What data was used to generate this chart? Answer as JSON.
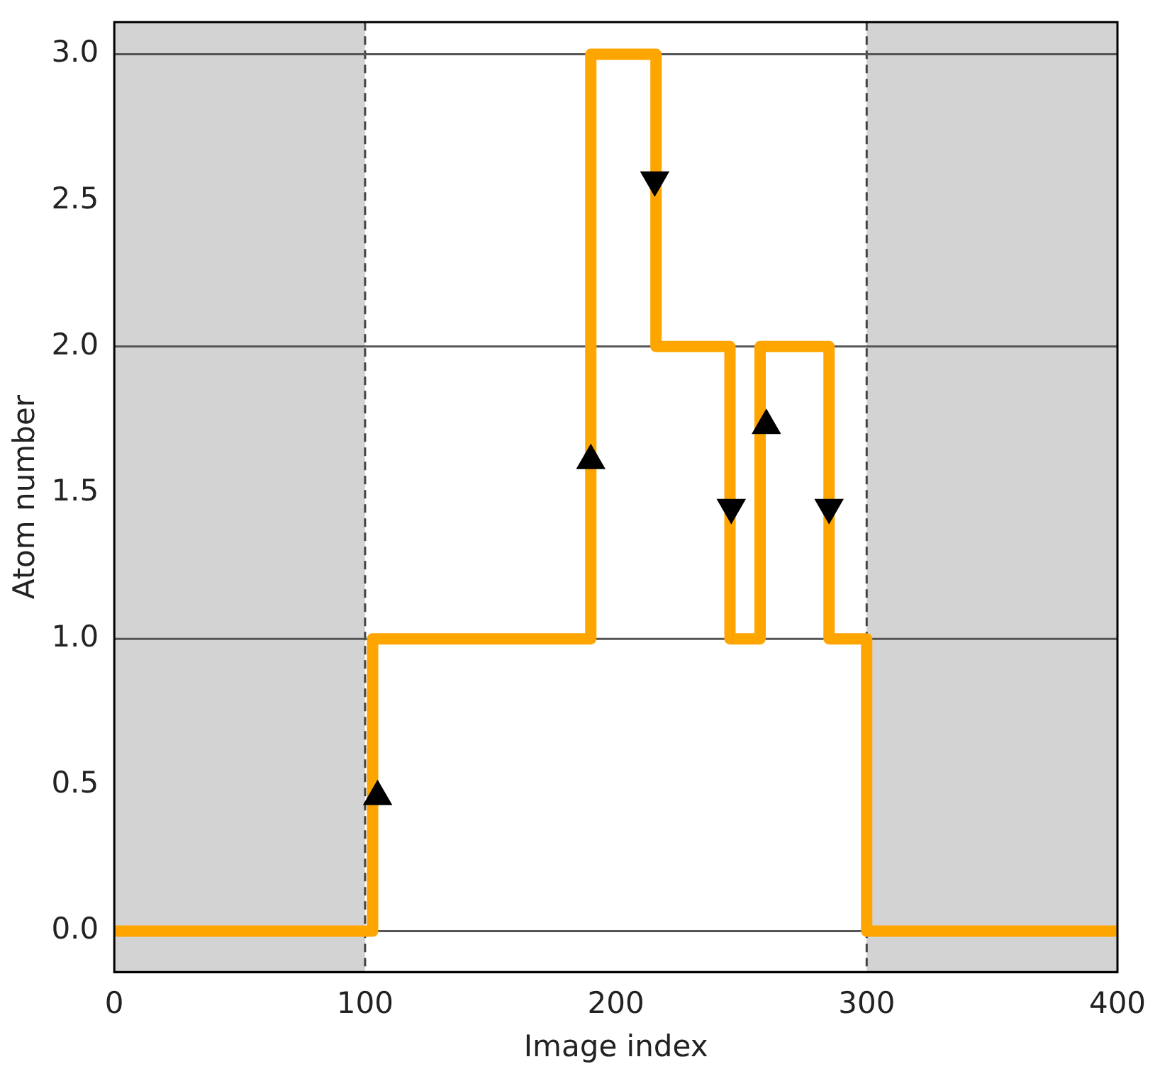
{
  "chart_data": {
    "type": "step",
    "xlabel": "Image index",
    "ylabel": "Atom number",
    "xlim": [
      0,
      400
    ],
    "xticks": [
      0,
      100,
      200,
      300,
      400
    ],
    "ylim": [
      -0.14,
      3.11
    ],
    "yticks": [
      {
        "value": 0,
        "label": "0.0"
      },
      {
        "value": 0.5,
        "label": "0.5"
      },
      {
        "value": 1,
        "label": "1.0"
      },
      {
        "value": 1.5,
        "label": "1.5"
      },
      {
        "value": 2,
        "label": "2.0"
      },
      {
        "value": 2.5,
        "label": "2.5"
      },
      {
        "value": 3,
        "label": "3.0"
      }
    ],
    "grid": false,
    "legend": false,
    "bands": [
      {
        "axis": "x",
        "from": 0,
        "to": 100,
        "color": "#d3d3d3"
      },
      {
        "axis": "x",
        "from": 300,
        "to": 400,
        "color": "#d3d3d3"
      }
    ],
    "ref_lines": [
      {
        "axis": "x",
        "value": 100,
        "color": "#444444",
        "line_style": "dashed"
      },
      {
        "axis": "x",
        "value": 300,
        "color": "#444444",
        "line_style": "dashed"
      },
      {
        "axis": "y",
        "value": 0,
        "color": "#555555",
        "line_style": "solid"
      },
      {
        "axis": "y",
        "value": 1,
        "color": "#555555",
        "line_style": "solid"
      },
      {
        "axis": "y",
        "value": 2,
        "color": "#555555",
        "line_style": "solid"
      },
      {
        "axis": "y",
        "value": 3,
        "color": "#555555",
        "line_style": "solid"
      }
    ],
    "series": [
      {
        "type": "step",
        "color": "#ffa500",
        "x": [
          0,
          103,
          190,
          216,
          245.5,
          257.5,
          285,
          300,
          400
        ],
        "values": [
          0,
          1,
          3,
          2,
          1,
          2,
          1,
          0,
          0
        ]
      },
      {
        "type": "scatter",
        "color": "#000000",
        "marker": "triangle",
        "x": [
          105,
          190,
          260
        ],
        "values": [
          0.46,
          1.61,
          1.73
        ]
      },
      {
        "type": "scatter",
        "color": "#000000",
        "marker": "triangle-down",
        "x": [
          215.5,
          246,
          285
        ],
        "values": [
          2.57,
          1.45,
          1.45
        ]
      }
    ]
  }
}
